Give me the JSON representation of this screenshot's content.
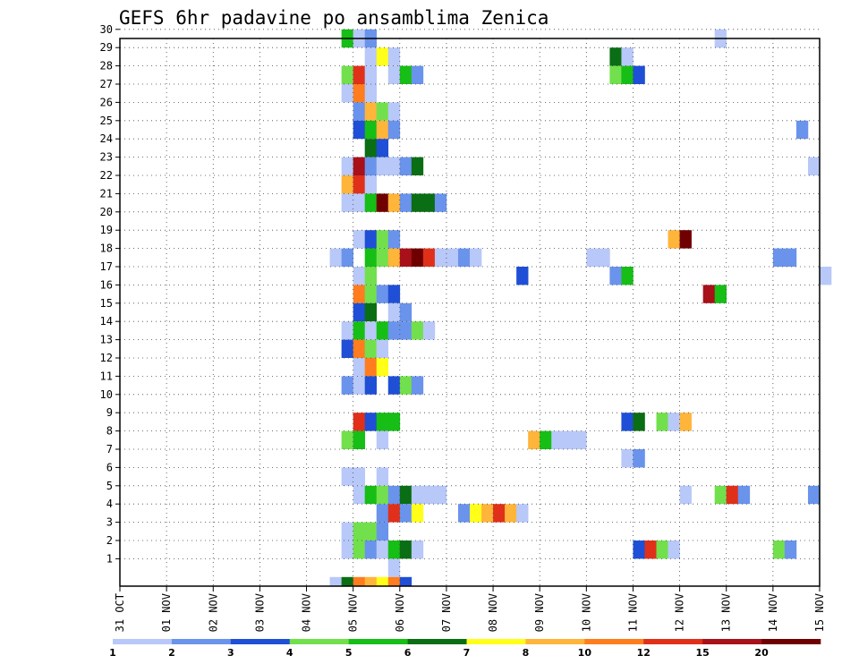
{
  "chart_data": {
    "type": "heatmap",
    "title": "GEFS 6hr padavine po ansamblima Zenica",
    "xlabel": "",
    "ylabel": "",
    "x_tick_labels": [
      "31 OCT",
      "01 NOV",
      "02 NOV",
      "03 NOV",
      "04 NOV",
      "05 NOV",
      "06 NOV",
      "07 NOV",
      "08 NOV",
      "09 NOV",
      "10 NOV",
      "11 NOV",
      "12 NOV",
      "13 NOV",
      "14 NOV",
      "15 NOV"
    ],
    "x_range_days": [
      0,
      15
    ],
    "x_step_hours": 6,
    "y_tick_labels": [
      "1",
      "2",
      "3",
      "4",
      "5",
      "6",
      "7",
      "8",
      "9",
      "10",
      "11",
      "12",
      "13",
      "14",
      "15",
      "16",
      "17",
      "18",
      "19",
      "20",
      "21",
      "22",
      "23",
      "24",
      "25",
      "26",
      "27",
      "28",
      "29",
      "30"
    ],
    "y_range": [
      0,
      30
    ],
    "grid": true,
    "colorbar": {
      "labels": [
        "1",
        "2",
        "3",
        "4",
        "5",
        "6",
        "7",
        "8",
        "10",
        "12",
        "15",
        "20"
      ],
      "colors": [
        "#b8c8f8",
        "#6a93ec",
        "#1f4fd6",
        "#72e04c",
        "#16be16",
        "#0a6e14",
        "#ffff1a",
        "#ffb43a",
        "#ff7d1e",
        "#e0301a",
        "#a8101a",
        "#700000"
      ]
    },
    "cells": [
      {
        "m": 30,
        "d": 4.75,
        "c": 5
      },
      {
        "m": 30,
        "d": 5.0,
        "c": 1
      },
      {
        "m": 30,
        "d": 5.25,
        "c": 2
      },
      {
        "m": 30,
        "d": 12.75,
        "c": 1
      },
      {
        "m": 29,
        "d": 5.25,
        "c": 1
      },
      {
        "m": 29,
        "d": 5.5,
        "c": 7
      },
      {
        "m": 29,
        "d": 5.75,
        "c": 1
      },
      {
        "m": 29,
        "d": 10.5,
        "c": 6
      },
      {
        "m": 29,
        "d": 10.75,
        "c": 1
      },
      {
        "m": 28,
        "d": 4.75,
        "c": 4
      },
      {
        "m": 28,
        "d": 5.0,
        "c": 10
      },
      {
        "m": 28,
        "d": 5.25,
        "c": 1
      },
      {
        "m": 28,
        "d": 5.75,
        "c": 1
      },
      {
        "m": 28,
        "d": 6.0,
        "c": 5
      },
      {
        "m": 28,
        "d": 6.25,
        "c": 2
      },
      {
        "m": 28,
        "d": 10.5,
        "c": 4
      },
      {
        "m": 28,
        "d": 10.75,
        "c": 5
      },
      {
        "m": 28,
        "d": 11.0,
        "c": 3
      },
      {
        "m": 27,
        "d": 4.75,
        "c": 1
      },
      {
        "m": 27,
        "d": 5.0,
        "c": 9
      },
      {
        "m": 27,
        "d": 5.25,
        "c": 1
      },
      {
        "m": 26,
        "d": 5.0,
        "c": 2
      },
      {
        "m": 26,
        "d": 5.25,
        "c": 8
      },
      {
        "m": 26,
        "d": 5.5,
        "c": 4
      },
      {
        "m": 26,
        "d": 5.75,
        "c": 1
      },
      {
        "m": 25,
        "d": 5.0,
        "c": 3
      },
      {
        "m": 25,
        "d": 5.25,
        "c": 5
      },
      {
        "m": 25,
        "d": 5.5,
        "c": 8
      },
      {
        "m": 25,
        "d": 5.75,
        "c": 2
      },
      {
        "m": 25,
        "d": 14.5,
        "c": 2
      },
      {
        "m": 24,
        "d": 5.25,
        "c": 6
      },
      {
        "m": 24,
        "d": 5.5,
        "c": 3
      },
      {
        "m": 23,
        "d": 4.75,
        "c": 1
      },
      {
        "m": 23,
        "d": 5.0,
        "c": 11
      },
      {
        "m": 23,
        "d": 5.25,
        "c": 2
      },
      {
        "m": 23,
        "d": 5.5,
        "c": 1
      },
      {
        "m": 23,
        "d": 5.75,
        "c": 1
      },
      {
        "m": 23,
        "d": 6.0,
        "c": 2
      },
      {
        "m": 23,
        "d": 6.25,
        "c": 6
      },
      {
        "m": 23,
        "d": 14.75,
        "c": 1
      },
      {
        "m": 22,
        "d": 4.75,
        "c": 8
      },
      {
        "m": 22,
        "d": 5.0,
        "c": 10
      },
      {
        "m": 22,
        "d": 5.25,
        "c": 1
      },
      {
        "m": 21,
        "d": 4.75,
        "c": 1
      },
      {
        "m": 21,
        "d": 5.0,
        "c": 1
      },
      {
        "m": 21,
        "d": 5.25,
        "c": 5
      },
      {
        "m": 21,
        "d": 5.5,
        "c": 12
      },
      {
        "m": 21,
        "d": 5.75,
        "c": 8
      },
      {
        "m": 21,
        "d": 6.0,
        "c": 2
      },
      {
        "m": 21,
        "d": 6.25,
        "c": 6
      },
      {
        "m": 21,
        "d": 6.5,
        "c": 6
      },
      {
        "m": 21,
        "d": 6.75,
        "c": 2
      },
      {
        "m": 19,
        "d": 5.0,
        "c": 1
      },
      {
        "m": 19,
        "d": 5.25,
        "c": 3
      },
      {
        "m": 19,
        "d": 5.5,
        "c": 4
      },
      {
        "m": 19,
        "d": 5.75,
        "c": 2
      },
      {
        "m": 19,
        "d": 11.75,
        "c": 8
      },
      {
        "m": 19,
        "d": 12.0,
        "c": 12
      },
      {
        "m": 18,
        "d": 4.5,
        "c": 1
      },
      {
        "m": 18,
        "d": 4.75,
        "c": 2
      },
      {
        "m": 18,
        "d": 5.25,
        "c": 5
      },
      {
        "m": 18,
        "d": 5.5,
        "c": 4
      },
      {
        "m": 18,
        "d": 5.75,
        "c": 8
      },
      {
        "m": 18,
        "d": 6.0,
        "c": 11
      },
      {
        "m": 18,
        "d": 6.25,
        "c": 12
      },
      {
        "m": 18,
        "d": 6.5,
        "c": 10
      },
      {
        "m": 18,
        "d": 6.75,
        "c": 1
      },
      {
        "m": 18,
        "d": 7.0,
        "c": 1
      },
      {
        "m": 18,
        "d": 7.25,
        "c": 2
      },
      {
        "m": 18,
        "d": 7.5,
        "c": 1
      },
      {
        "m": 18,
        "d": 10.0,
        "c": 1
      },
      {
        "m": 18,
        "d": 10.25,
        "c": 1
      },
      {
        "m": 18,
        "d": 14.0,
        "c": 2
      },
      {
        "m": 18,
        "d": 14.25,
        "c": 2
      },
      {
        "m": 17,
        "d": 5.0,
        "c": 1
      },
      {
        "m": 17,
        "d": 5.25,
        "c": 4
      },
      {
        "m": 17,
        "d": 8.5,
        "c": 3
      },
      {
        "m": 17,
        "d": 10.5,
        "c": 2
      },
      {
        "m": 17,
        "d": 10.75,
        "c": 5
      },
      {
        "m": 17,
        "d": 15.0,
        "c": 1
      },
      {
        "m": 16,
        "d": 5.0,
        "c": 9
      },
      {
        "m": 16,
        "d": 5.25,
        "c": 4
      },
      {
        "m": 16,
        "d": 5.5,
        "c": 2
      },
      {
        "m": 16,
        "d": 5.75,
        "c": 3
      },
      {
        "m": 16,
        "d": 12.5,
        "c": 11
      },
      {
        "m": 16,
        "d": 12.75,
        "c": 5
      },
      {
        "m": 15,
        "d": 5.0,
        "c": 3
      },
      {
        "m": 15,
        "d": 5.25,
        "c": 6
      },
      {
        "m": 15,
        "d": 5.75,
        "c": 1
      },
      {
        "m": 15,
        "d": 6.0,
        "c": 2
      },
      {
        "m": 14,
        "d": 4.75,
        "c": 1
      },
      {
        "m": 14,
        "d": 5.0,
        "c": 5
      },
      {
        "m": 14,
        "d": 5.25,
        "c": 1
      },
      {
        "m": 14,
        "d": 5.5,
        "c": 5
      },
      {
        "m": 14,
        "d": 5.75,
        "c": 2
      },
      {
        "m": 14,
        "d": 6.0,
        "c": 2
      },
      {
        "m": 14,
        "d": 6.25,
        "c": 4
      },
      {
        "m": 14,
        "d": 6.5,
        "c": 1
      },
      {
        "m": 13,
        "d": 4.75,
        "c": 3
      },
      {
        "m": 13,
        "d": 5.0,
        "c": 9
      },
      {
        "m": 13,
        "d": 5.25,
        "c": 4
      },
      {
        "m": 13,
        "d": 5.5,
        "c": 1
      },
      {
        "m": 12,
        "d": 5.0,
        "c": 1
      },
      {
        "m": 12,
        "d": 5.25,
        "c": 9
      },
      {
        "m": 12,
        "d": 5.5,
        "c": 7
      },
      {
        "m": 11,
        "d": 4.75,
        "c": 2
      },
      {
        "m": 11,
        "d": 5.0,
        "c": 1
      },
      {
        "m": 11,
        "d": 5.25,
        "c": 3
      },
      {
        "m": 11,
        "d": 5.75,
        "c": 3
      },
      {
        "m": 11,
        "d": 6.0,
        "c": 4
      },
      {
        "m": 11,
        "d": 6.25,
        "c": 2
      },
      {
        "m": 9,
        "d": 5.0,
        "c": 10
      },
      {
        "m": 9,
        "d": 5.25,
        "c": 3
      },
      {
        "m": 9,
        "d": 5.5,
        "c": 5
      },
      {
        "m": 9,
        "d": 5.75,
        "c": 5
      },
      {
        "m": 9,
        "d": 10.75,
        "c": 3
      },
      {
        "m": 9,
        "d": 11.0,
        "c": 6
      },
      {
        "m": 9,
        "d": 11.5,
        "c": 4
      },
      {
        "m": 9,
        "d": 11.75,
        "c": 1
      },
      {
        "m": 9,
        "d": 12.0,
        "c": 8
      },
      {
        "m": 8,
        "d": 4.75,
        "c": 4
      },
      {
        "m": 8,
        "d": 5.0,
        "c": 5
      },
      {
        "m": 8,
        "d": 5.5,
        "c": 1
      },
      {
        "m": 8,
        "d": 8.75,
        "c": 8
      },
      {
        "m": 8,
        "d": 9.0,
        "c": 5
      },
      {
        "m": 8,
        "d": 9.25,
        "c": 1
      },
      {
        "m": 8,
        "d": 9.5,
        "c": 1
      },
      {
        "m": 8,
        "d": 9.75,
        "c": 1
      },
      {
        "m": 7,
        "d": 10.75,
        "c": 1
      },
      {
        "m": 7,
        "d": 11.0,
        "c": 2
      },
      {
        "m": 6,
        "d": 4.75,
        "c": 1
      },
      {
        "m": 6,
        "d": 5.0,
        "c": 1
      },
      {
        "m": 6,
        "d": 5.5,
        "c": 1
      },
      {
        "m": 5,
        "d": 5.0,
        "c": 1
      },
      {
        "m": 5,
        "d": 5.25,
        "c": 5
      },
      {
        "m": 5,
        "d": 5.5,
        "c": 4
      },
      {
        "m": 5,
        "d": 5.75,
        "c": 2
      },
      {
        "m": 5,
        "d": 6.0,
        "c": 6
      },
      {
        "m": 5,
        "d": 6.25,
        "c": 1
      },
      {
        "m": 5,
        "d": 6.5,
        "c": 1
      },
      {
        "m": 5,
        "d": 6.75,
        "c": 1
      },
      {
        "m": 5,
        "d": 12.0,
        "c": 1
      },
      {
        "m": 5,
        "d": 12.75,
        "c": 4
      },
      {
        "m": 5,
        "d": 13.0,
        "c": 10
      },
      {
        "m": 5,
        "d": 13.25,
        "c": 2
      },
      {
        "m": 5,
        "d": 14.75,
        "c": 2
      },
      {
        "m": 4,
        "d": 5.5,
        "c": 2
      },
      {
        "m": 4,
        "d": 5.75,
        "c": 10
      },
      {
        "m": 4,
        "d": 6.0,
        "c": 2
      },
      {
        "m": 4,
        "d": 6.25,
        "c": 7
      },
      {
        "m": 4,
        "d": 7.25,
        "c": 2
      },
      {
        "m": 4,
        "d": 7.5,
        "c": 7
      },
      {
        "m": 4,
        "d": 7.75,
        "c": 8
      },
      {
        "m": 4,
        "d": 8.0,
        "c": 10
      },
      {
        "m": 4,
        "d": 8.25,
        "c": 8
      },
      {
        "m": 4,
        "d": 8.5,
        "c": 1
      },
      {
        "m": 3,
        "d": 4.75,
        "c": 1
      },
      {
        "m": 3,
        "d": 5.0,
        "c": 4
      },
      {
        "m": 3,
        "d": 5.25,
        "c": 4
      },
      {
        "m": 3,
        "d": 5.5,
        "c": 2
      },
      {
        "m": 2,
        "d": 4.75,
        "c": 1
      },
      {
        "m": 2,
        "d": 5.0,
        "c": 4
      },
      {
        "m": 2,
        "d": 5.25,
        "c": 2
      },
      {
        "m": 2,
        "d": 5.5,
        "c": 1
      },
      {
        "m": 2,
        "d": 5.75,
        "c": 5
      },
      {
        "m": 2,
        "d": 6.0,
        "c": 6
      },
      {
        "m": 2,
        "d": 6.25,
        "c": 1
      },
      {
        "m": 2,
        "d": 11.0,
        "c": 3
      },
      {
        "m": 2,
        "d": 11.25,
        "c": 10
      },
      {
        "m": 2,
        "d": 11.5,
        "c": 4
      },
      {
        "m": 2,
        "d": 11.75,
        "c": 1
      },
      {
        "m": 2,
        "d": 14.0,
        "c": 4
      },
      {
        "m": 2,
        "d": 14.25,
        "c": 2
      },
      {
        "m": 1,
        "d": 5.75,
        "c": 1
      },
      {
        "m": 0,
        "d": 4.5,
        "c": 1
      },
      {
        "m": 0,
        "d": 4.75,
        "c": 6
      },
      {
        "m": 0,
        "d": 5.0,
        "c": 9
      },
      {
        "m": 0,
        "d": 5.25,
        "c": 8
      },
      {
        "m": 0,
        "d": 5.5,
        "c": 7
      },
      {
        "m": 0,
        "d": 5.75,
        "c": 9
      },
      {
        "m": 0,
        "d": 6.0,
        "c": 3
      }
    ]
  }
}
